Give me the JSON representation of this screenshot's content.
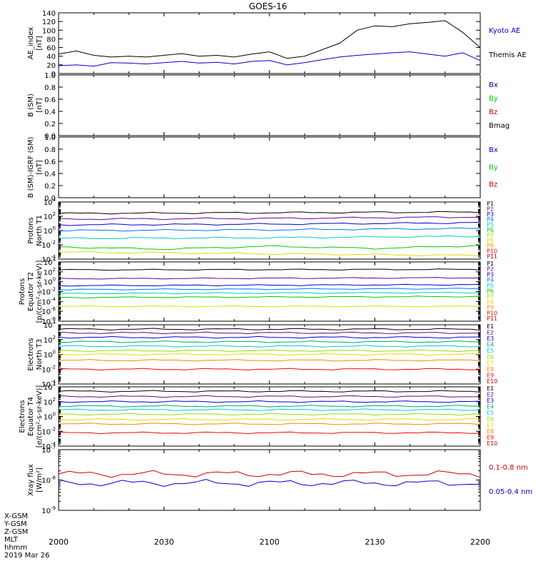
{
  "title": "GOES-16",
  "footer": {
    "coord_labels": [
      "X-GSM",
      "Y-GSM",
      "Z-GSM",
      "MLT",
      "hhmm",
      "2019 Mar 26"
    ],
    "time_ticks": [
      "2000",
      "2030",
      "2100",
      "2130",
      "2200"
    ]
  },
  "chart_data": [
    {
      "type": "line",
      "ylabel": [
        "AE_index",
        "[nT]"
      ],
      "ylim": [
        0,
        140
      ],
      "yticks": [
        "0",
        "20",
        "40",
        "60",
        "80",
        "100",
        "120",
        "140"
      ],
      "x_range": [
        "2000",
        "2200"
      ],
      "series": [
        {
          "name": "Kyoto AE",
          "color": "#0000cc",
          "x": [
            "2000",
            "2005",
            "2010",
            "2015",
            "2020",
            "2025",
            "2030",
            "2035",
            "2040",
            "2045",
            "2050",
            "2055",
            "2100",
            "2105",
            "2110",
            "2115",
            "2120",
            "2125",
            "2130",
            "2135",
            "2140",
            "2145",
            "2150",
            "2155",
            "2200"
          ],
          "values": [
            18,
            20,
            17,
            25,
            24,
            22,
            25,
            28,
            24,
            26,
            22,
            28,
            30,
            20,
            25,
            32,
            38,
            42,
            45,
            48,
            50,
            45,
            40,
            48,
            30
          ]
        },
        {
          "name": "Themis AE",
          "color": "#000000",
          "x": [
            "2000",
            "2005",
            "2010",
            "2015",
            "2020",
            "2025",
            "2030",
            "2035",
            "2040",
            "2045",
            "2050",
            "2055",
            "2100",
            "2105",
            "2110",
            "2115",
            "2120",
            "2125",
            "2130",
            "2135",
            "2140",
            "2145",
            "2150",
            "2155",
            "2200"
          ],
          "values": [
            45,
            52,
            42,
            38,
            40,
            38,
            42,
            46,
            40,
            42,
            38,
            45,
            50,
            35,
            40,
            55,
            70,
            100,
            110,
            108,
            115,
            118,
            122,
            95,
            60
          ]
        }
      ]
    },
    {
      "type": "line",
      "ylabel": [
        "B (SM)",
        "[nT]"
      ],
      "ylim": [
        0,
        1
      ],
      "yticks": [
        "0.0",
        "0.2",
        "0.4",
        "0.6",
        "0.8",
        "1.0"
      ],
      "series": [
        {
          "name": "Bx",
          "color": "#0000cc",
          "values": []
        },
        {
          "name": "By",
          "color": "#00cc00",
          "values": []
        },
        {
          "name": "Bz",
          "color": "#cc0000",
          "values": []
        },
        {
          "name": "Bmag",
          "color": "#000000",
          "values": []
        }
      ]
    },
    {
      "type": "line",
      "ylabel": [
        "B (SM)-IGRF (SM)",
        "[nT]"
      ],
      "ylim": [
        0,
        1
      ],
      "yticks": [
        "0.0",
        "0.2",
        "0.4",
        "0.6",
        "0.8",
        "1.0"
      ],
      "series": [
        {
          "name": "Bx",
          "color": "#0000cc",
          "values": []
        },
        {
          "name": "By",
          "color": "#00cc00",
          "values": []
        },
        {
          "name": "Bz",
          "color": "#cc0000",
          "values": []
        }
      ]
    },
    {
      "type": "line",
      "scale": "log",
      "ylabel": [
        "Protons",
        "North T1"
      ],
      "ylim_exp": [
        -4,
        4
      ],
      "ytick_exps": [
        -4,
        -2,
        0,
        2,
        4
      ],
      "series": [
        {
          "name": "P1",
          "color": "#000000",
          "log10": [
            2.4,
            2.5,
            2.6
          ]
        },
        {
          "name": "P2",
          "color": "#660099",
          "log10": [
            1.6,
            1.7,
            1.9
          ]
        },
        {
          "name": "P3",
          "color": "#0000cc",
          "log10": [
            0.8,
            0.9,
            1.1
          ]
        },
        {
          "name": "P4",
          "color": "#0077ff",
          "log10": [
            0.0,
            0.1,
            0.3
          ]
        },
        {
          "name": "P5",
          "color": "#00cccc",
          "log10": [
            -1.1,
            -1.0,
            -0.8
          ]
        },
        {
          "name": "P6",
          "color": "#00cc00",
          "log10": [
            -2.3,
            -2.6,
            -2.2,
            -2.5,
            -2.1
          ]
        },
        {
          "name": "P7",
          "color": "#99dd00",
          "log10": []
        },
        {
          "name": "P8",
          "color": "#dddd00",
          "log10": [
            -3.0,
            -3.5
          ]
        },
        {
          "name": "P9",
          "color": "#ff8800",
          "log10": []
        },
        {
          "name": "P10",
          "color": "#ff0000",
          "log10": []
        },
        {
          "name": "P11",
          "color": "#cc0000",
          "log10": []
        }
      ]
    },
    {
      "type": "line",
      "scale": "log",
      "ylabel": [
        "Protons",
        "Equator T2",
        "[p/(cm²-s-sr-keV)]"
      ],
      "ylim_exp": [
        -8,
        4
      ],
      "ytick_exps": [
        -8,
        -6,
        -4,
        -2,
        0,
        2,
        4
      ],
      "series": [
        {
          "name": "P1",
          "color": "#000000",
          "log10": [
            2.4,
            2.5
          ]
        },
        {
          "name": "P2",
          "color": "#660099",
          "log10": [
            0.6,
            0.8
          ]
        },
        {
          "name": "P3",
          "color": "#0000cc",
          "log10": [
            -0.8,
            -0.6
          ]
        },
        {
          "name": "P4",
          "color": "#0077ff",
          "log10": [
            -1.6,
            -1.4
          ]
        },
        {
          "name": "P5",
          "color": "#00cccc",
          "log10": [
            -2.4,
            -2.2
          ]
        },
        {
          "name": "P6",
          "color": "#00cc00",
          "log10": [
            -3.2,
            -3.0
          ]
        },
        {
          "name": "P7",
          "color": "#99dd00",
          "log10": []
        },
        {
          "name": "P8",
          "color": "#dddd00",
          "log10": [
            -5.0
          ]
        },
        {
          "name": "P9",
          "color": "#ff8800",
          "log10": []
        },
        {
          "name": "P10",
          "color": "#ff0000",
          "log10": []
        },
        {
          "name": "P11",
          "color": "#cc0000",
          "log10": []
        }
      ]
    },
    {
      "type": "line",
      "scale": "log",
      "ylabel": [
        "Electrons",
        "North T3"
      ],
      "ylim_exp": [
        -4,
        4
      ],
      "ytick_exps": [
        -4,
        -2,
        0,
        2,
        4
      ],
      "series": [
        {
          "name": "E1",
          "color": "#000000",
          "log10": [
            3.4
          ]
        },
        {
          "name": "E2",
          "color": "#660099",
          "log10": [
            2.9
          ]
        },
        {
          "name": "E3",
          "color": "#0000cc",
          "log10": [
            2.3
          ]
        },
        {
          "name": "E4",
          "color": "#00aa66",
          "log10": [
            1.7
          ]
        },
        {
          "name": "E5",
          "color": "#00cccc",
          "log10": [
            1.1
          ]
        },
        {
          "name": "E6",
          "color": "#99dd00",
          "log10": [
            0.5
          ]
        },
        {
          "name": "E7",
          "color": "#dddd00",
          "log10": [
            0.0
          ]
        },
        {
          "name": "E8",
          "color": "#ff8800",
          "log10": [
            -0.8
          ]
        },
        {
          "name": "E9",
          "color": "#ff0000",
          "log10": [
            -2.0
          ]
        },
        {
          "name": "E10",
          "color": "#cc0000",
          "log10": []
        }
      ]
    },
    {
      "type": "line",
      "scale": "log",
      "ylabel": [
        "Electrons",
        "Equator T4",
        "[e/(cm²-s-sr-keV)]"
      ],
      "ylim_exp": [
        -4,
        4
      ],
      "ytick_exps": [
        -4,
        -2,
        0,
        2,
        4
      ],
      "series": [
        {
          "name": "E1",
          "color": "#000000",
          "log10": [
            3.4
          ]
        },
        {
          "name": "E2",
          "color": "#660099",
          "log10": [
            2.7
          ]
        },
        {
          "name": "E3",
          "color": "#0000cc",
          "log10": [
            2.0
          ]
        },
        {
          "name": "E4",
          "color": "#00aa66",
          "log10": [
            1.4
          ]
        },
        {
          "name": "E5",
          "color": "#00cccc",
          "log10": [
            0.9
          ]
        },
        {
          "name": "E6",
          "color": "#99dd00",
          "log10": [
            0.3
          ]
        },
        {
          "name": "E7",
          "color": "#dddd00",
          "log10": [
            -0.4
          ]
        },
        {
          "name": "E8",
          "color": "#ff8800",
          "log10": [
            -1.0
          ]
        },
        {
          "name": "E9",
          "color": "#ff0000",
          "log10": [
            -2.2
          ]
        },
        {
          "name": "E10",
          "color": "#cc0000",
          "log10": []
        }
      ]
    },
    {
      "type": "line",
      "scale": "log",
      "ylabel": [
        "Xray flux",
        "[W/m²]"
      ],
      "ylim_exp": [
        -9,
        -7
      ],
      "ytick_exps": [
        -9,
        -8,
        -7
      ],
      "series": [
        {
          "name": "0.1-0.8 nm",
          "color": "#cc0000",
          "log10": [
            -7.8
          ]
        },
        {
          "name": "0.05-0.4 nm",
          "color": "#0000cc",
          "log10": [
            -8.1
          ]
        }
      ]
    }
  ]
}
